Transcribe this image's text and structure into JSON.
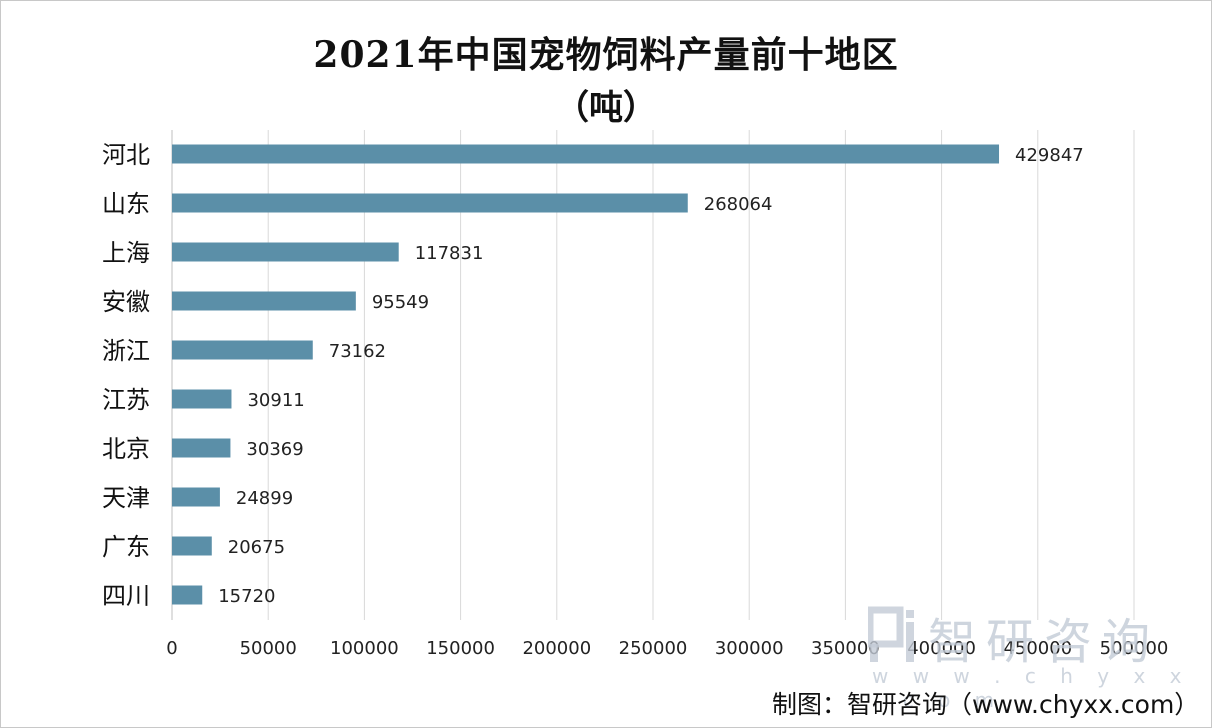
{
  "chart_data": {
    "type": "bar",
    "orientation": "horizontal",
    "title": "2021年中国宠物饲料产量前十地区",
    "subtitle": "（吨）",
    "categories": [
      "河北",
      "山东",
      "上海",
      "安徽",
      "浙江",
      "江苏",
      "北京",
      "天津",
      "广东",
      "四川"
    ],
    "values": [
      429847,
      268064,
      117831,
      95549,
      73162,
      30911,
      30369,
      24899,
      20675,
      15720
    ],
    "xlim": [
      0,
      500000
    ],
    "xticks": [
      0,
      50000,
      100000,
      150000,
      200000,
      250000,
      300000,
      350000,
      400000,
      450000,
      500000
    ],
    "grid": true,
    "bar_color": "#5b8fa8"
  },
  "watermark": {
    "name": "智研咨询",
    "url": "w w w . c h y x x . c o m"
  },
  "credit": "制图：智研咨询（www.chyxx.com）"
}
